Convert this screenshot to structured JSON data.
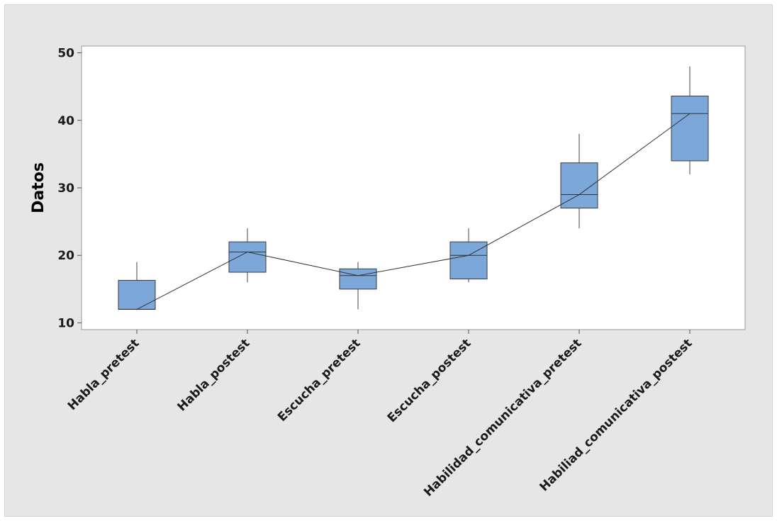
{
  "chart_data": {
    "type": "boxplot",
    "title": "",
    "xlabel": "",
    "ylabel": "Datos",
    "ylim": [
      9,
      51
    ],
    "yticks": [
      10,
      20,
      30,
      40,
      50
    ],
    "grid": false,
    "legend": "none",
    "box_color": "#7ba7d9",
    "box_edge_color": "#3a3a3a",
    "connect_line": "median",
    "categories": [
      "Habla_pretest",
      "Habla_postest",
      "Escucha_pretest",
      "Escucha_postest",
      "Habilidad_comunicativa_pretest",
      "Habiliad_comunicativa_postest"
    ],
    "boxes": [
      {
        "min": 12,
        "q1": 12,
        "median": 12,
        "q3": 16.3,
        "max": 19
      },
      {
        "min": 16,
        "q1": 17.5,
        "median": 20.5,
        "q3": 22,
        "max": 24
      },
      {
        "min": 12,
        "q1": 15,
        "median": 17,
        "q3": 18,
        "max": 19
      },
      {
        "min": 16,
        "q1": 16.5,
        "median": 20,
        "q3": 22,
        "max": 24
      },
      {
        "min": 24,
        "q1": 27,
        "median": 29,
        "q3": 33.7,
        "max": 38
      },
      {
        "min": 32,
        "q1": 34,
        "median": 41,
        "q3": 43.6,
        "max": 48
      }
    ]
  }
}
